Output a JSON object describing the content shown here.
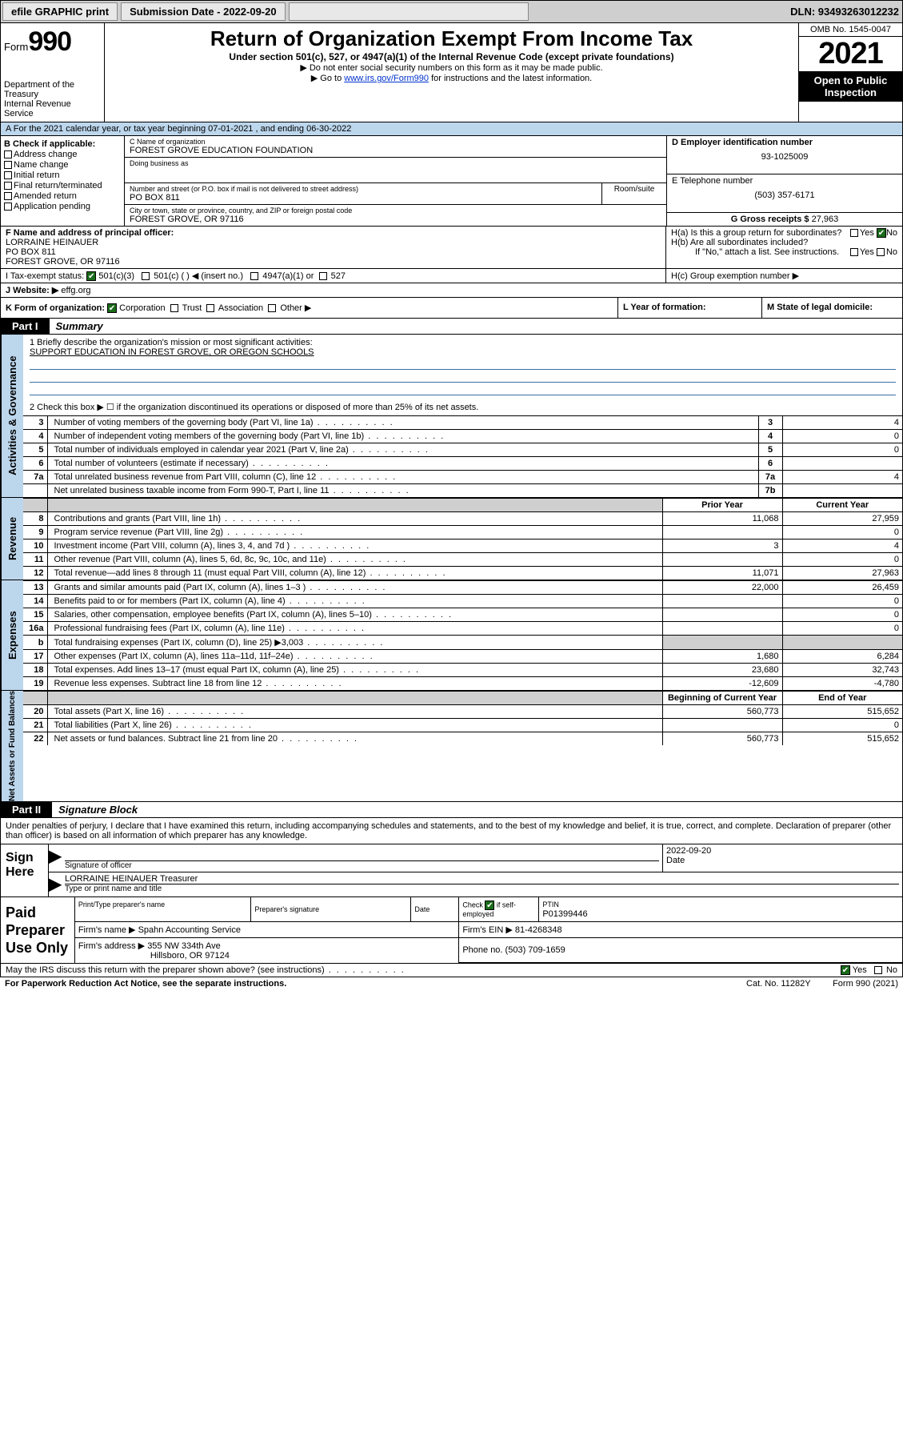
{
  "topbar": {
    "efile": "efile GRAPHIC print",
    "submission_label": "Submission Date - 2022-09-20",
    "dln": "DLN: 93493263012232"
  },
  "header": {
    "form_word": "Form",
    "form_no": "990",
    "dept": "Department of the Treasury",
    "irs": "Internal Revenue Service",
    "title": "Return of Organization Exempt From Income Tax",
    "sub": "Under section 501(c), 527, or 4947(a)(1) of the Internal Revenue Code (except private foundations)",
    "sub2a": "▶ Do not enter social security numbers on this form as it may be made public.",
    "sub2b_pre": "▶ Go to ",
    "sub2b_link": "www.irs.gov/Form990",
    "sub2b_post": " for instructions and the latest information.",
    "omb": "OMB No. 1545-0047",
    "year": "2021",
    "inspect": "Open to Public Inspection"
  },
  "row_a": "A For the 2021 calendar year, or tax year beginning 07-01-2021   , and ending 06-30-2022",
  "col_b": {
    "title": "B Check if applicable:",
    "addr": "Address change",
    "name": "Name change",
    "init": "Initial return",
    "final": "Final return/terminated",
    "amend": "Amended return",
    "app": "Application pending"
  },
  "col_c": {
    "name_lbl": "C Name of organization",
    "name": "FOREST GROVE EDUCATION FOUNDATION",
    "dba_lbl": "Doing business as",
    "street_lbl": "Number and street (or P.O. box if mail is not delivered to street address)",
    "room_lbl": "Room/suite",
    "street": "PO BOX 811",
    "city_lbl": "City or town, state or province, country, and ZIP or foreign postal code",
    "city": "FOREST GROVE, OR  97116"
  },
  "col_d": {
    "ein_lbl": "D Employer identification number",
    "ein": "93-1025009",
    "phone_lbl": "E Telephone number",
    "phone": "(503) 357-6171",
    "gross_lbl": "G Gross receipts $",
    "gross": "27,963"
  },
  "row_f": {
    "label": "F Name and address of principal officer:",
    "name": "LORRAINE HEINAUER",
    "street": "PO BOX 811",
    "city": "FOREST GROVE, OR  97116"
  },
  "row_h": {
    "ha": "H(a)  Is this a group return for subordinates?",
    "hb": "H(b)  Are all subordinates included?",
    "hb2": "If \"No,\" attach a list. See instructions.",
    "hc": "H(c)  Group exemption number ▶",
    "yes": "Yes",
    "no": "No"
  },
  "row_i": {
    "label": "I    Tax-exempt status:",
    "c3": "501(c)(3)",
    "c": "501(c) (  ) ◀ (insert no.)",
    "a1": "4947(a)(1) or",
    "527": "527"
  },
  "row_j": {
    "label": "J   Website: ▶",
    "val": "effg.org"
  },
  "row_k": {
    "label": "K Form of organization:",
    "corp": "Corporation",
    "trust": "Trust",
    "assoc": "Association",
    "other": "Other ▶"
  },
  "row_l": {
    "label": "L Year of formation:"
  },
  "row_m": {
    "label": "M State of legal domicile:"
  },
  "part1": {
    "tag": "Part I",
    "title": "Summary"
  },
  "gov": {
    "side": "Activities & Governance",
    "q1": "1   Briefly describe the organization's mission or most significant activities:",
    "q1v": "SUPPORT EDUCATION IN FOREST GROVE, OR OREGON SCHOOLS",
    "q2": "2   Check this box ▶ ☐  if the organization discontinued its operations or disposed of more than 25% of its net assets.",
    "rows": [
      {
        "n": "3",
        "d": "Number of voting members of the governing body (Part VI, line 1a)",
        "i": "3",
        "v": "4"
      },
      {
        "n": "4",
        "d": "Number of independent voting members of the governing body (Part VI, line 1b)",
        "i": "4",
        "v": "0"
      },
      {
        "n": "5",
        "d": "Total number of individuals employed in calendar year 2021 (Part V, line 2a)",
        "i": "5",
        "v": "0"
      },
      {
        "n": "6",
        "d": "Total number of volunteers (estimate if necessary)",
        "i": "6",
        "v": ""
      },
      {
        "n": "7a",
        "d": "Total unrelated business revenue from Part VIII, column (C), line 12",
        "i": "7a",
        "v": "4"
      },
      {
        "n": "",
        "d": "Net unrelated business taxable income from Form 990-T, Part I, line 11",
        "i": "7b",
        "v": ""
      }
    ]
  },
  "rev": {
    "side": "Revenue",
    "hdr_prior": "Prior Year",
    "hdr_curr": "Current Year",
    "rows": [
      {
        "n": "8",
        "d": "Contributions and grants (Part VIII, line 1h)",
        "p": "11,068",
        "c": "27,959"
      },
      {
        "n": "9",
        "d": "Program service revenue (Part VIII, line 2g)",
        "p": "",
        "c": "0"
      },
      {
        "n": "10",
        "d": "Investment income (Part VIII, column (A), lines 3, 4, and 7d )",
        "p": "3",
        "c": "4"
      },
      {
        "n": "11",
        "d": "Other revenue (Part VIII, column (A), lines 5, 6d, 8c, 9c, 10c, and 11e)",
        "p": "",
        "c": "0"
      },
      {
        "n": "12",
        "d": "Total revenue—add lines 8 through 11 (must equal Part VIII, column (A), line 12)",
        "p": "11,071",
        "c": "27,963"
      }
    ]
  },
  "exp": {
    "side": "Expenses",
    "rows": [
      {
        "n": "13",
        "d": "Grants and similar amounts paid (Part IX, column (A), lines 1–3 )",
        "p": "22,000",
        "c": "26,459"
      },
      {
        "n": "14",
        "d": "Benefits paid to or for members (Part IX, column (A), line 4)",
        "p": "",
        "c": "0"
      },
      {
        "n": "15",
        "d": "Salaries, other compensation, employee benefits (Part IX, column (A), lines 5–10)",
        "p": "",
        "c": "0"
      },
      {
        "n": "16a",
        "d": "Professional fundraising fees (Part IX, column (A), line 11e)",
        "p": "",
        "c": "0"
      },
      {
        "n": "b",
        "d": "Total fundraising expenses (Part IX, column (D), line 25) ▶3,003",
        "p": "shade",
        "c": "shade"
      },
      {
        "n": "17",
        "d": "Other expenses (Part IX, column (A), lines 11a–11d, 11f–24e)",
        "p": "1,680",
        "c": "6,284"
      },
      {
        "n": "18",
        "d": "Total expenses. Add lines 13–17 (must equal Part IX, column (A), line 25)",
        "p": "23,680",
        "c": "32,743"
      },
      {
        "n": "19",
        "d": "Revenue less expenses. Subtract line 18 from line 12",
        "p": "-12,609",
        "c": "-4,780"
      }
    ]
  },
  "net": {
    "side": "Net Assets or Fund Balances",
    "hdr_beg": "Beginning of Current Year",
    "hdr_end": "End of Year",
    "rows": [
      {
        "n": "20",
        "d": "Total assets (Part X, line 16)",
        "p": "560,773",
        "c": "515,652"
      },
      {
        "n": "21",
        "d": "Total liabilities (Part X, line 26)",
        "p": "",
        "c": "0"
      },
      {
        "n": "22",
        "d": "Net assets or fund balances. Subtract line 21 from line 20",
        "p": "560,773",
        "c": "515,652"
      }
    ]
  },
  "part2": {
    "tag": "Part II",
    "title": "Signature Block"
  },
  "sig_intro": "Under penalties of perjury, I declare that I have examined this return, including accompanying schedules and statements, and to the best of my knowledge and belief, it is true, correct, and complete. Declaration of preparer (other than officer) is based on all information of which preparer has any knowledge.",
  "sign": {
    "label": "Sign Here",
    "sig_lbl": "Signature of officer",
    "date": "2022-09-20",
    "date_lbl": "Date",
    "name": "LORRAINE HEINAUER Treasurer",
    "name_lbl": "Type or print name and title"
  },
  "prep": {
    "label": "Paid Preparer Use Only",
    "h1": "Print/Type preparer's name",
    "h2": "Preparer's signature",
    "h3": "Date",
    "h4_pre": "Check",
    "h4_post": "if self-employed",
    "h5": "PTIN",
    "ptin": "P01399446",
    "firm_lbl": "Firm's name   ▶",
    "firm": "Spahn Accounting Service",
    "ein_lbl": "Firm's EIN ▶",
    "ein": "81-4268348",
    "addr_lbl": "Firm's address ▶",
    "addr1": "355 NW 334th Ave",
    "addr2": "Hillsboro, OR  97124",
    "phone_lbl": "Phone no.",
    "phone": "(503) 709-1659"
  },
  "footer": {
    "discuss": "May the IRS discuss this return with the preparer shown above? (see instructions)",
    "yes": "Yes",
    "no": "No",
    "pra": "For Paperwork Reduction Act Notice, see the separate instructions.",
    "cat": "Cat. No. 11282Y",
    "form": "Form 990 (2021)"
  }
}
